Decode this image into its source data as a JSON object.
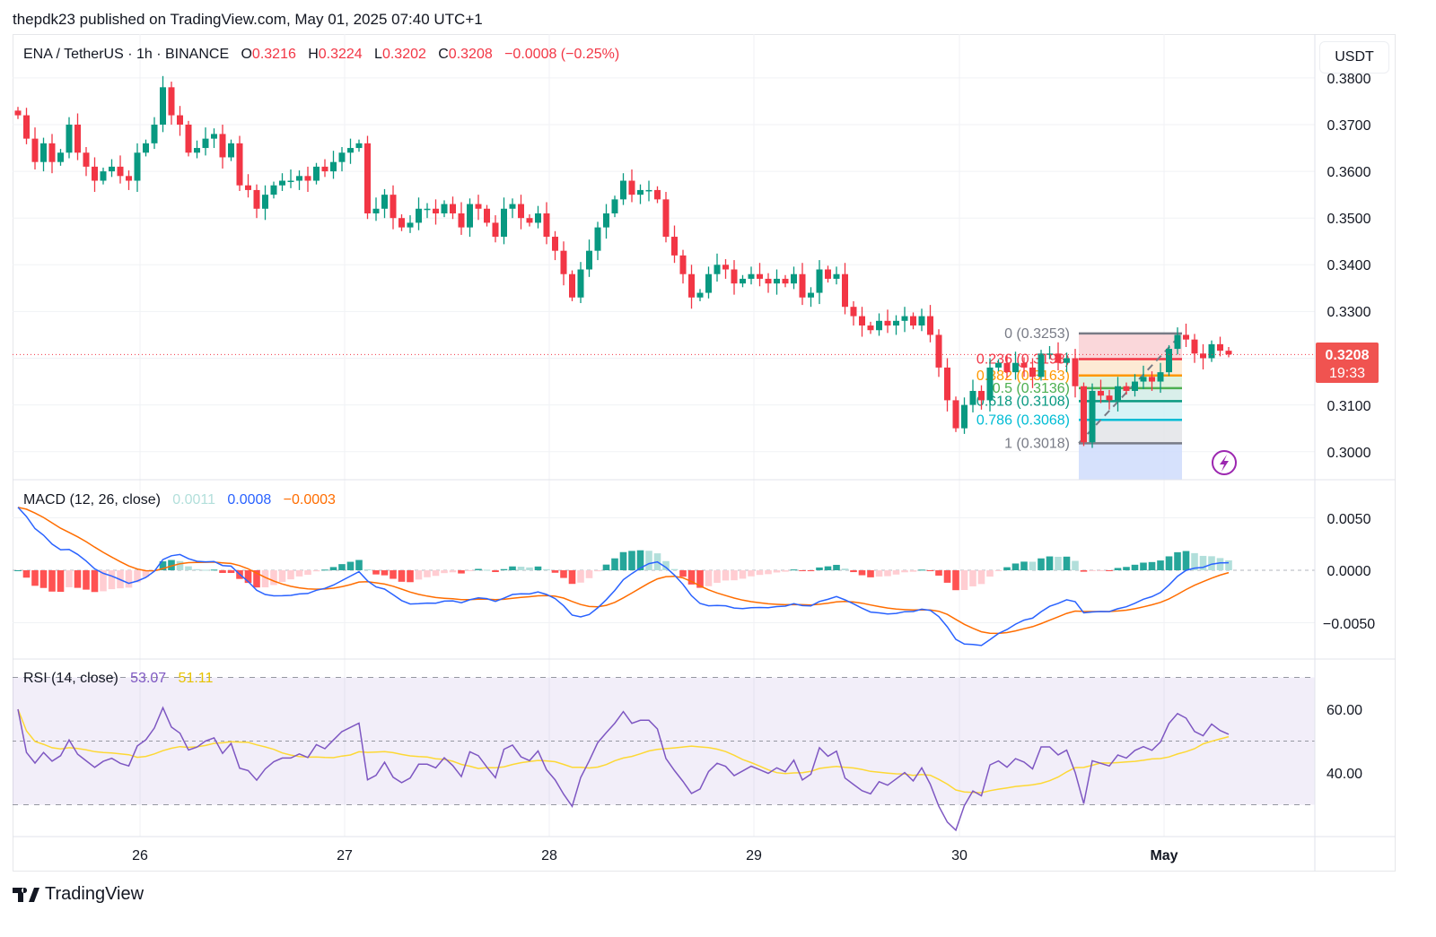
{
  "header": {
    "published": "thepdk23 published on TradingView.com, May 01, 2025 07:40 UTC+1"
  },
  "legend": {
    "symbol": "ENA / TetherUS · 1h · BINANCE",
    "o_label": "O",
    "o": "0.3216",
    "h_label": "H",
    "h": "0.3224",
    "l_label": "L",
    "l": "0.3202",
    "c_label": "C",
    "c": "0.3208",
    "change": "−0.0008 (−0.25%)"
  },
  "price_axis": {
    "currency": "USDT",
    "ticks": [
      "0.3800",
      "0.3700",
      "0.3600",
      "0.3500",
      "0.3400",
      "0.3300",
      "0.3100",
      "0.3000"
    ],
    "last_price": "0.3208",
    "countdown": "19:33"
  },
  "macd": {
    "title": "MACD (12, 26, close)",
    "hist": "0.0011",
    "macd": "0.0008",
    "signal": "−0.0003",
    "ticks": [
      "0.0050",
      "0.0000",
      "−0.0050"
    ]
  },
  "rsi": {
    "title": "RSI (14, close)",
    "rsi": "53.07",
    "ma": "51.11",
    "ticks": [
      "60.00",
      "40.00"
    ]
  },
  "time_axis": {
    "labels": [
      "26",
      "27",
      "28",
      "29",
      "30",
      "May"
    ]
  },
  "footer": {
    "brand": "TradingView"
  },
  "colors": {
    "up": "#089981",
    "down": "#f23645",
    "macd": "#2962ff",
    "signal": "#ff6d00",
    "rsi": "#7e57c2",
    "rsi_ma": "#fdd835"
  },
  "chart_data": {
    "type": "candlestick",
    "title": "ENA / TetherUS · 1h · BINANCE",
    "ylabel": "USDT",
    "ylim": [
      0.2945,
      0.3816
    ],
    "x_ticks": [
      "26",
      "27",
      "28",
      "29",
      "30",
      "May"
    ],
    "closes": [
      0.372,
      0.367,
      0.362,
      0.366,
      0.362,
      0.364,
      0.37,
      0.364,
      0.361,
      0.358,
      0.36,
      0.361,
      0.359,
      0.358,
      0.364,
      0.366,
      0.37,
      0.378,
      0.372,
      0.37,
      0.364,
      0.365,
      0.367,
      0.368,
      0.363,
      0.366,
      0.357,
      0.356,
      0.352,
      0.355,
      0.357,
      0.358,
      0.358,
      0.359,
      0.358,
      0.361,
      0.36,
      0.362,
      0.364,
      0.365,
      0.366,
      0.351,
      0.352,
      0.355,
      0.35,
      0.348,
      0.349,
      0.352,
      0.352,
      0.351,
      0.353,
      0.351,
      0.348,
      0.353,
      0.352,
      0.349,
      0.346,
      0.352,
      0.353,
      0.35,
      0.349,
      0.351,
      0.346,
      0.343,
      0.338,
      0.333,
      0.339,
      0.343,
      0.348,
      0.351,
      0.354,
      0.358,
      0.355,
      0.356,
      0.356,
      0.354,
      0.346,
      0.342,
      0.338,
      0.333,
      0.334,
      0.338,
      0.34,
      0.339,
      0.336,
      0.337,
      0.338,
      0.337,
      0.336,
      0.337,
      0.336,
      0.338,
      0.333,
      0.334,
      0.339,
      0.337,
      0.338,
      0.331,
      0.329,
      0.327,
      0.326,
      0.328,
      0.327,
      0.328,
      0.329,
      0.327,
      0.329,
      0.325,
      0.318,
      0.311,
      0.305,
      0.31,
      0.313,
      0.311,
      0.318,
      0.319,
      0.317,
      0.319,
      0.318,
      0.316,
      0.321,
      0.321,
      0.319,
      0.32,
      0.314,
      0.302,
      0.313,
      0.312,
      0.311,
      0.314,
      0.313,
      0.315,
      0.316,
      0.315,
      0.317,
      0.322,
      0.325,
      0.324,
      0.321,
      0.32,
      0.323,
      0.3216,
      0.3208
    ],
    "last": {
      "open": 0.3216,
      "high": 0.3224,
      "low": 0.3202,
      "close": 0.3208
    },
    "fibonacci": [
      {
        "ratio": "0",
        "price": 0.3253,
        "label": "0 (0.3253)",
        "color": "#787b86",
        "fill": "#f9d0d3"
      },
      {
        "ratio": "0.236",
        "price": 0.3198,
        "label": "0.236 (0.3198)",
        "color": "#f23645",
        "fill": "#fde6cc"
      },
      {
        "ratio": "0.382",
        "price": 0.3163,
        "label": "0.382 (0.3163)",
        "color": "#ff9800",
        "fill": "#d8efd9"
      },
      {
        "ratio": "0.5",
        "price": 0.3136,
        "label": "0.5 (0.3136)",
        "color": "#4caf50",
        "fill": "#d2ece6"
      },
      {
        "ratio": "0.618",
        "price": 0.3108,
        "label": "0.618 (0.3108)",
        "color": "#089981",
        "fill": "#d0f1f4"
      },
      {
        "ratio": "0.786",
        "price": 0.3068,
        "label": "0.786 (0.3068)",
        "color": "#00bcd4",
        "fill": "#e3e4e7"
      },
      {
        "ratio": "1",
        "price": 0.3018,
        "label": "1 (0.3018)",
        "color": "#787b86",
        "fill": "#cfdcfb"
      }
    ],
    "macd_params": [
      12,
      26,
      9
    ],
    "macd_ylim": [
      -0.0083,
      0.0083
    ],
    "rsi_period": 14,
    "rsi_ma_period": 14,
    "rsi_bands": [
      30,
      50,
      70
    ]
  }
}
